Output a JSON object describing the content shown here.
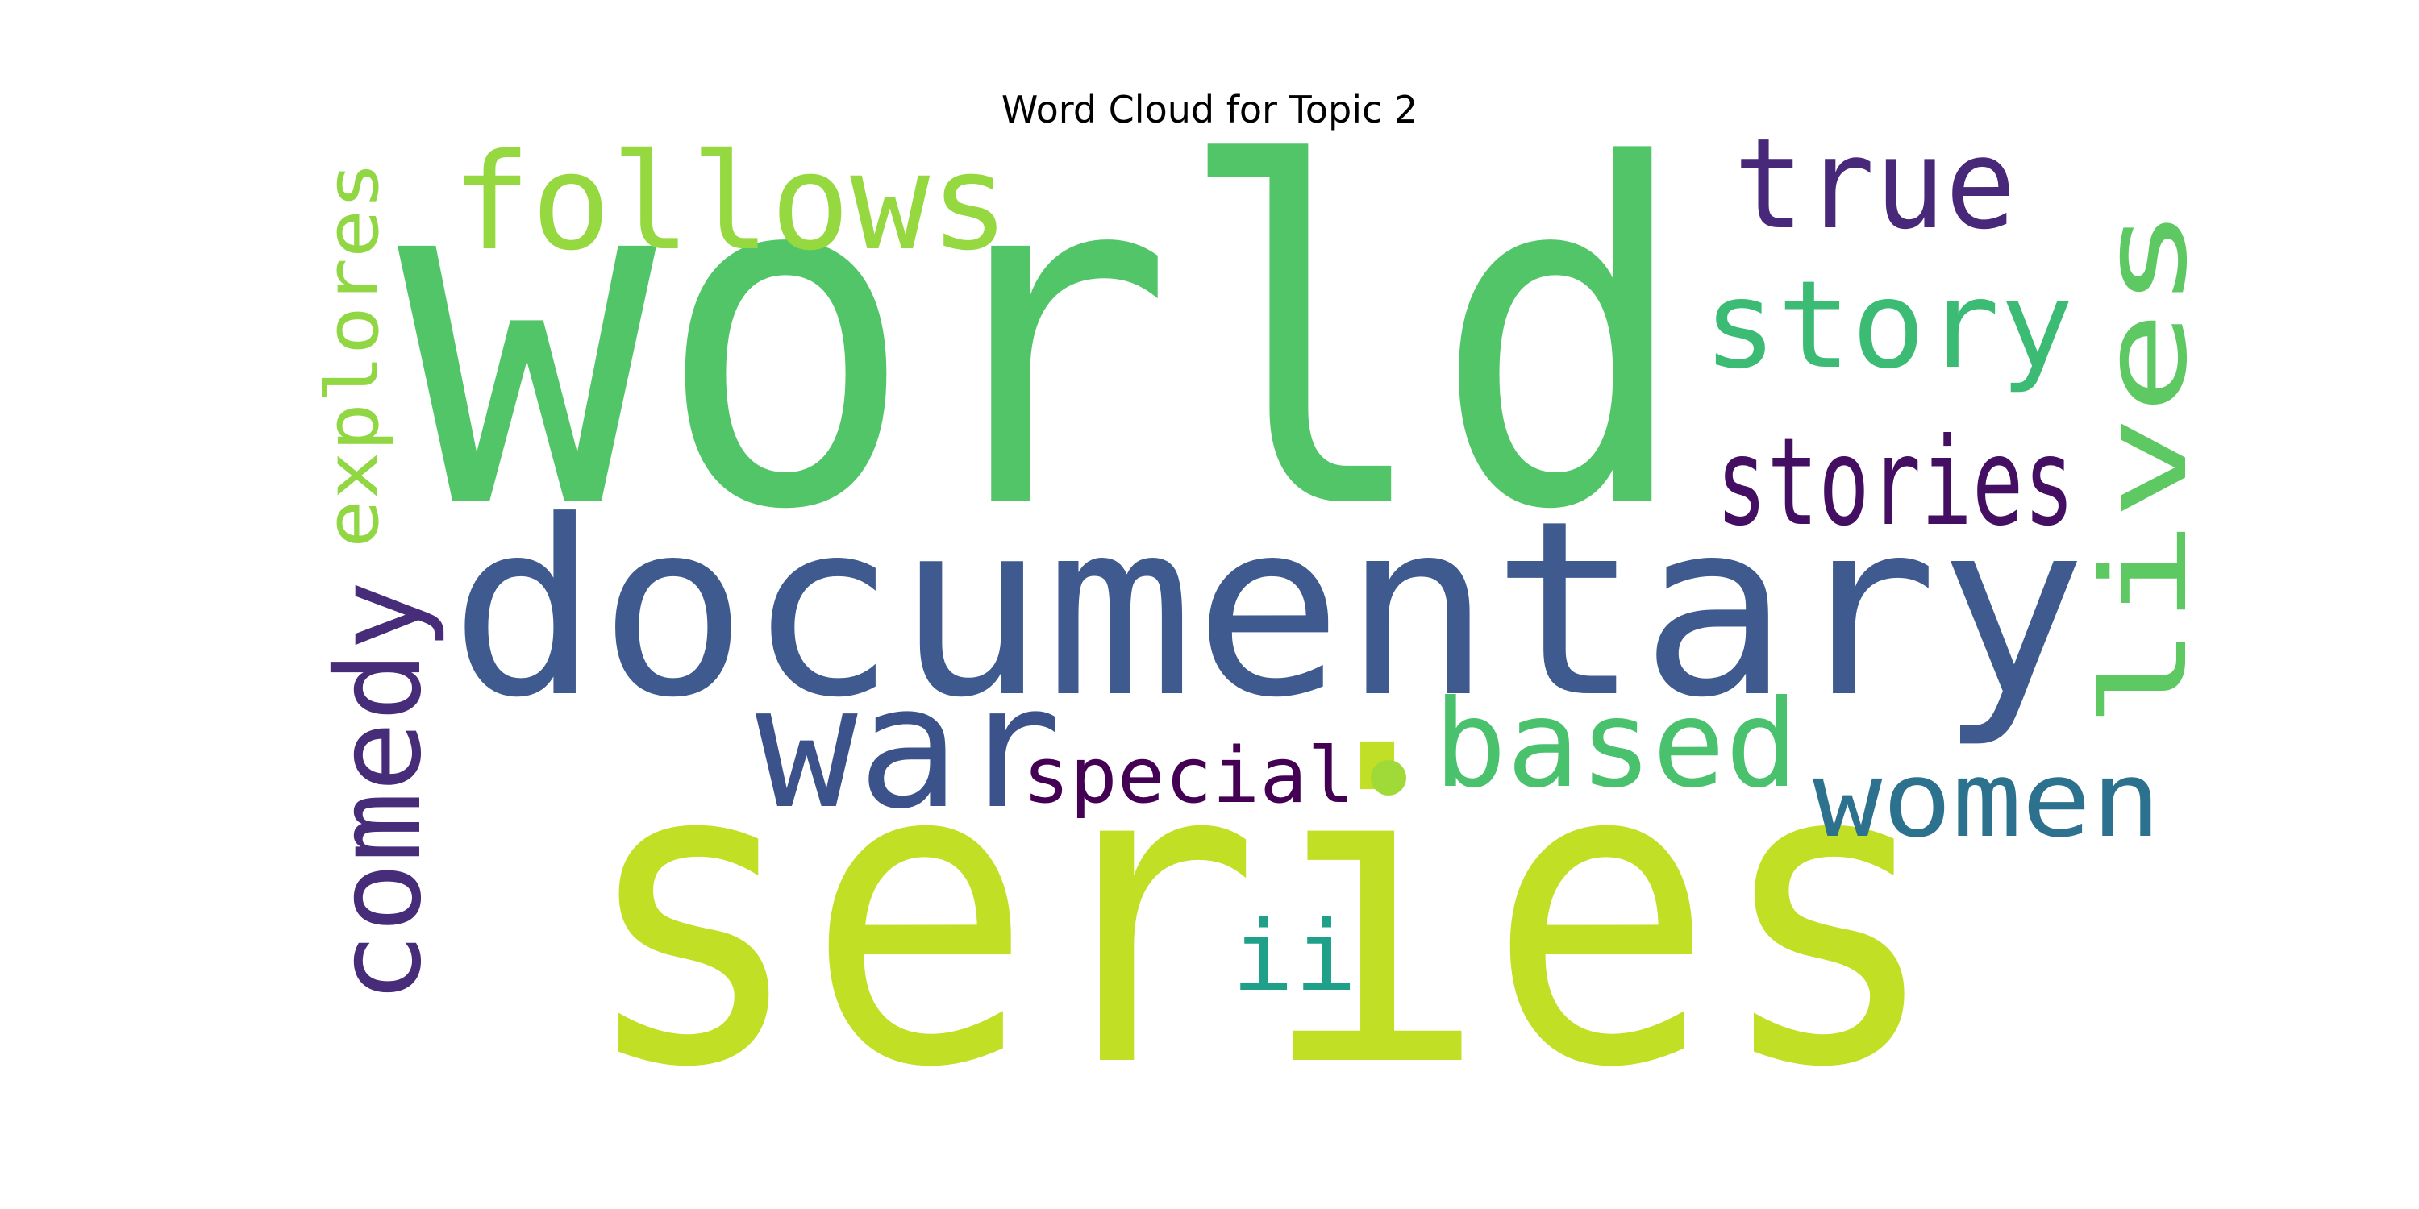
{
  "title": "Word Cloud for Topic 2",
  "words": [
    {
      "text": "world",
      "color": "#52c569"
    },
    {
      "text": "series",
      "color": "#c0df25"
    },
    {
      "text": "documentary",
      "color": "#3e5a8e"
    },
    {
      "text": "follows",
      "color": "#95d840"
    },
    {
      "text": "true",
      "color": "#482878"
    },
    {
      "text": "story",
      "color": "#3cbb75"
    },
    {
      "text": "stories",
      "color": "#440f62"
    },
    {
      "text": "lives",
      "color": "#5ec962"
    },
    {
      "text": "explores",
      "color": "#90d743"
    },
    {
      "text": "comedy",
      "color": "#472c7a"
    },
    {
      "text": "war",
      "color": "#3b528b"
    },
    {
      "text": "based",
      "color": "#4ac16d"
    },
    {
      "text": "special",
      "color": "#440154"
    },
    {
      "text": "women",
      "color": "#2c728e"
    },
    {
      "text": "ii",
      "color": "#1fa088"
    }
  ],
  "dot_color": "#a0da39"
}
